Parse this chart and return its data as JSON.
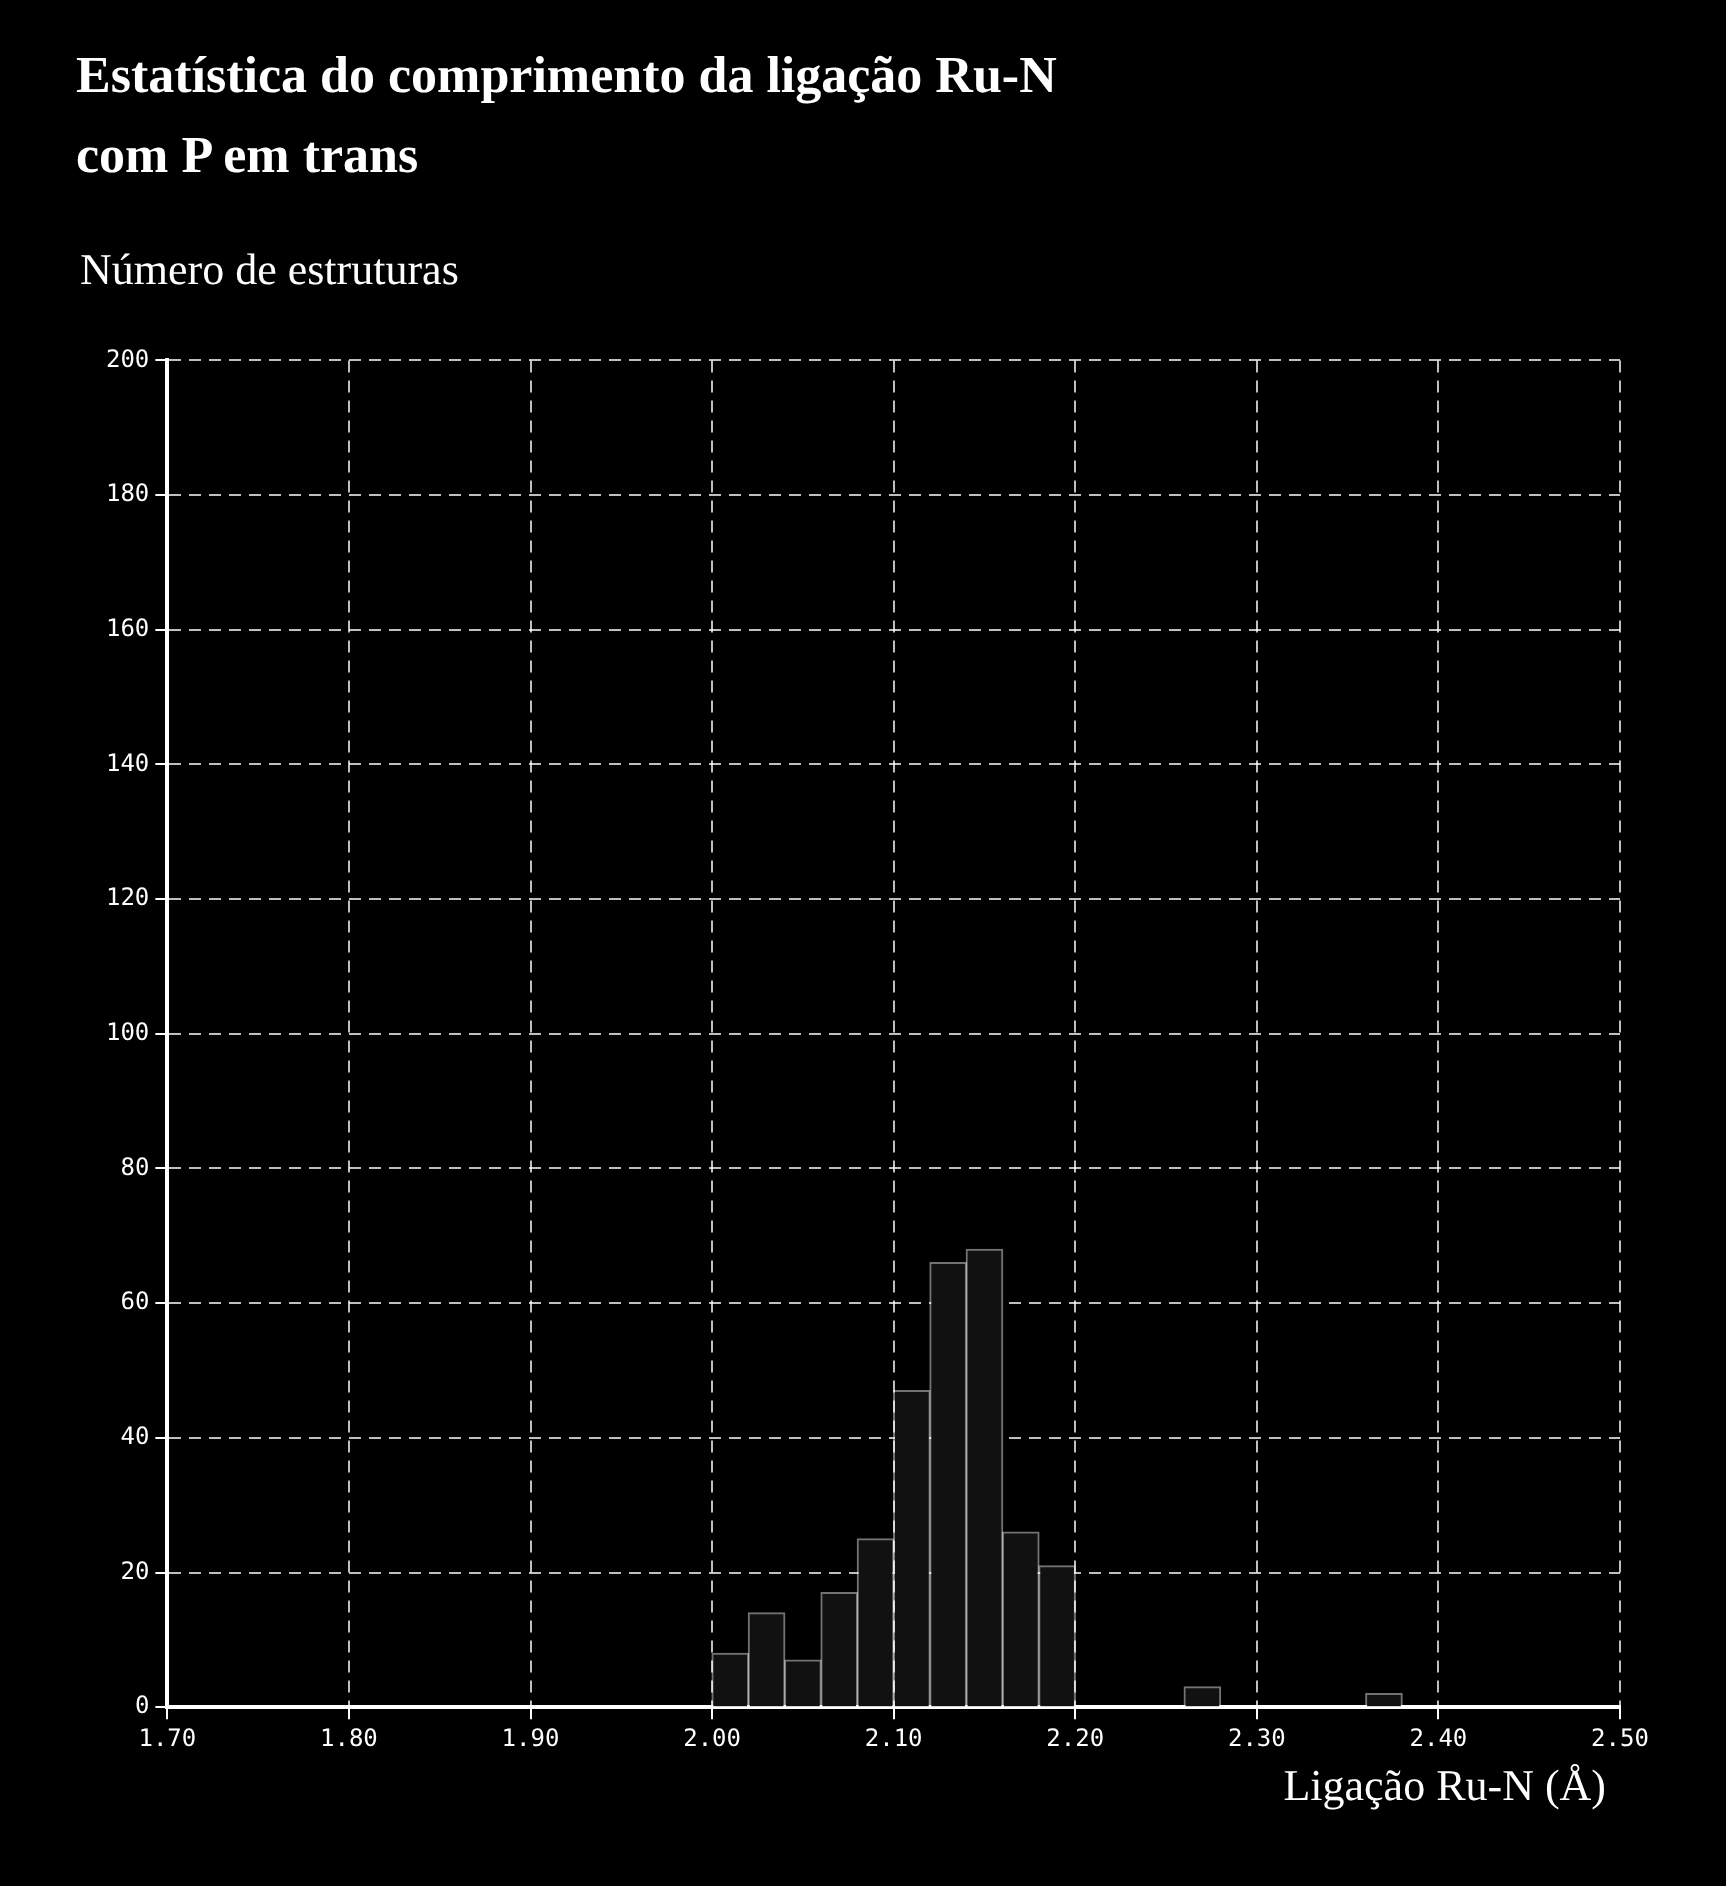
{
  "chart_data": {
    "type": "histogram",
    "title": "Estatística do comprimento da ligação Ru-N com P em trans",
    "ylabel": "Número de estruturas",
    "xlabel": "Ligação Ru-N (Å)",
    "bins": [
      2.0,
      2.02,
      2.04,
      2.06,
      2.08,
      2.1,
      2.12,
      2.14,
      2.16,
      2.18,
      2.2,
      2.22,
      2.24,
      2.26,
      2.28,
      2.3,
      2.32,
      2.34,
      2.36,
      2.38,
      2.4
    ],
    "values": [
      8,
      14,
      7,
      17,
      25,
      47,
      66,
      68,
      26,
      21,
      0,
      0,
      0,
      3,
      0,
      0,
      0,
      0,
      2,
      0
    ],
    "color": "#111111",
    "xlim": [
      1.7,
      2.5
    ],
    "xticks": [
      {
        "value": 1.7,
        "label": "1.70"
      },
      {
        "value": 1.8,
        "label": "1.80"
      },
      {
        "value": 1.9,
        "label": "1.90"
      },
      {
        "value": 2.0,
        "label": "2.00"
      },
      {
        "value": 2.1,
        "label": "2.10"
      },
      {
        "value": 2.2,
        "label": "2.20"
      },
      {
        "value": 2.3,
        "label": "2.30"
      },
      {
        "value": 2.4,
        "label": "2.40"
      },
      {
        "value": 2.5,
        "label": "2.50"
      }
    ],
    "ylim": [
      0,
      200
    ],
    "yticks": [
      0,
      20,
      40,
      60,
      80,
      100,
      120,
      140,
      160,
      180,
      200
    ],
    "grid": true
  }
}
